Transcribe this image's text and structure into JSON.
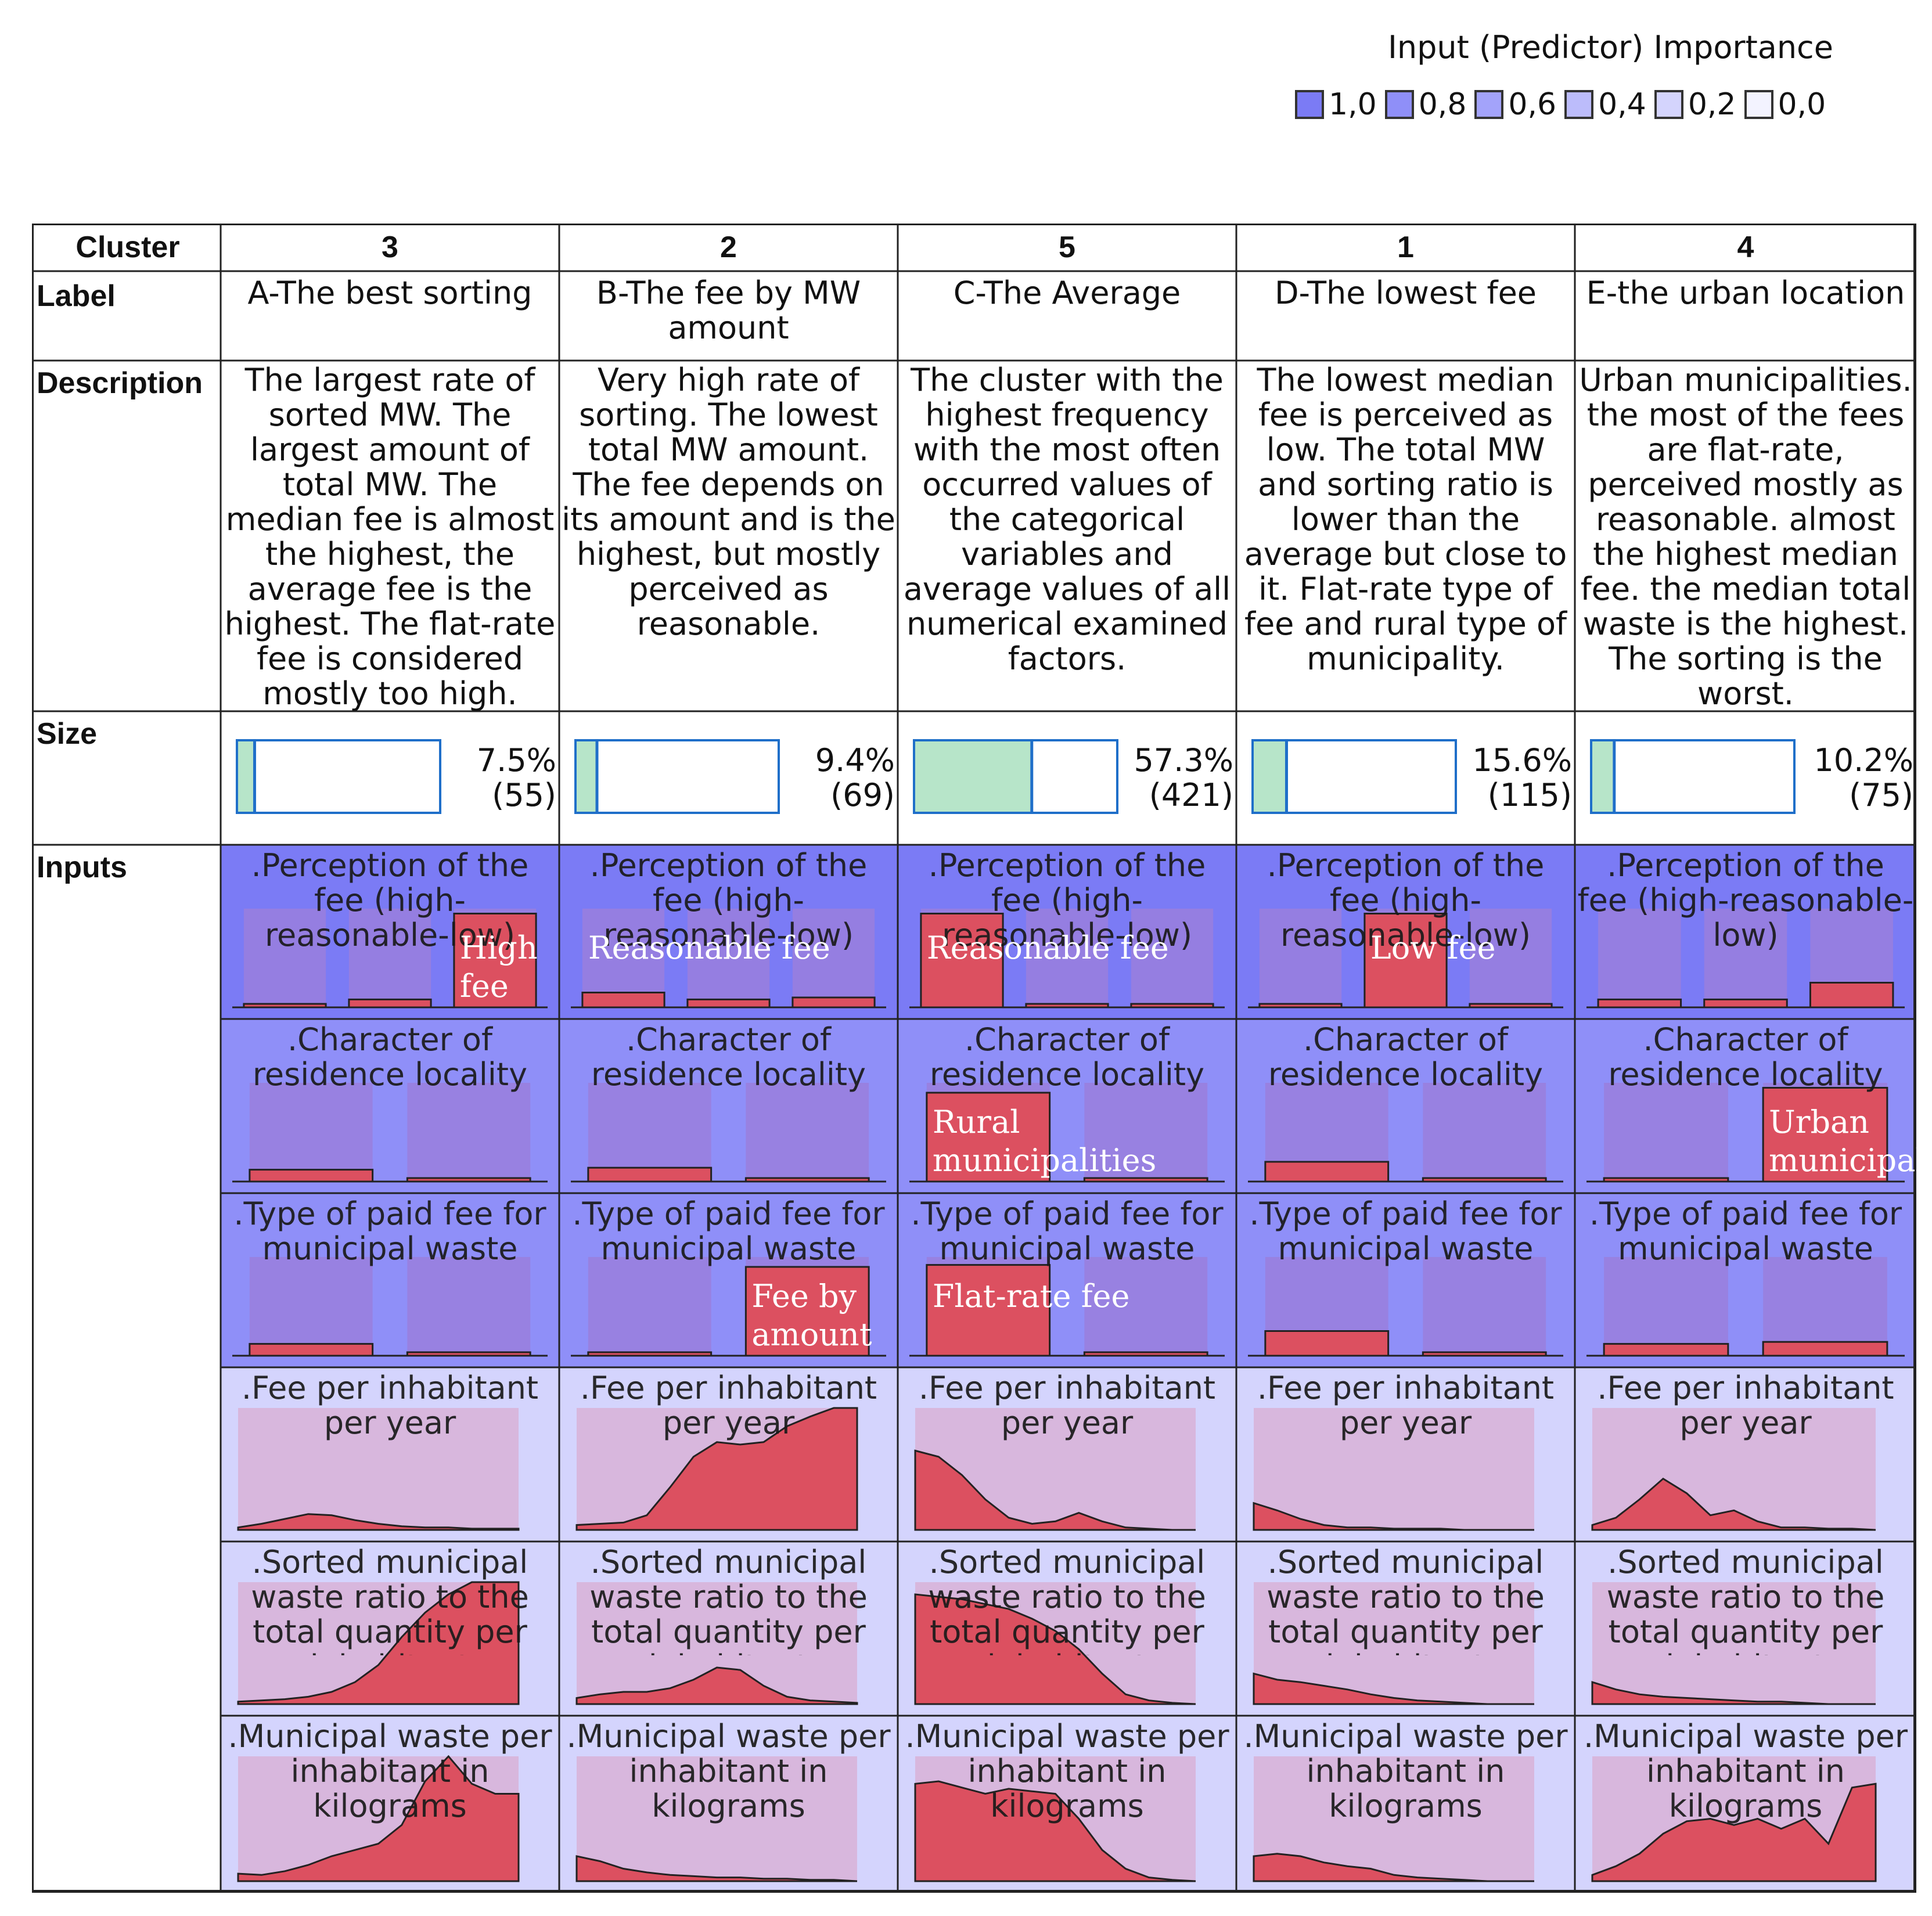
{
  "legend": {
    "title": "Input (Predictor) Importance",
    "items": [
      {
        "label": "1,0",
        "color": "#7b7bf5"
      },
      {
        "label": "0,8",
        "color": "#8f8ff8"
      },
      {
        "label": "0,6",
        "color": "#a3a3fa"
      },
      {
        "label": "0,4",
        "color": "#bcbcfb"
      },
      {
        "label": "0,2",
        "color": "#d4d4fd"
      },
      {
        "label": "0,0",
        "color": "#f3f3ff"
      }
    ]
  },
  "row_headers": {
    "cluster": "Cluster",
    "label": "Label",
    "description": "Description",
    "size": "Size",
    "inputs": "Inputs"
  },
  "clusters": [
    {
      "id": "3",
      "label": "A-The best sorting",
      "description": "The largest rate of sorted MW. The largest amount of total MW. The median fee is almost the highest, the average fee is the highest. The flat-rate fee is considered mostly too high.",
      "size_pct": "7.5%",
      "size_n": "(55)",
      "size_frac": 0.075
    },
    {
      "id": "2",
      "label": "B-The fee by MW amount",
      "description": "Very high rate of sorting. The lowest total MW amount. The fee depends on its amount and is the highest, but mostly perceived as reasonable.",
      "size_pct": "9.4%",
      "size_n": "(69)",
      "size_frac": 0.094
    },
    {
      "id": "5",
      "label": "C-The Average",
      "description": "The cluster with the highest frequency with the most often occurred values of the categorical variables and average values of all numerical examined factors.",
      "size_pct": "57.3%",
      "size_n": "(421)",
      "size_frac": 0.573
    },
    {
      "id": "1",
      "label": "D-The lowest fee",
      "description": "The lowest median fee is perceived as low. The total MW and sorting ratio is lower than the average but close to it. Flat-rate type of fee and rural type of municipality.",
      "size_pct": "15.6%",
      "size_n": "(115)",
      "size_frac": 0.156
    },
    {
      "id": "4",
      "label": "E-the urban location",
      "description": "Urban municipalities. the most of the fees are flat-rate, perceived mostly as reasonable. almost the highest median fee. the median total waste is the highest. The sorting is the worst.",
      "size_pct": "10.2%",
      "size_n": "(75)",
      "size_frac": 0.102
    }
  ],
  "inputs": [
    {
      "name": ".Perception of the fee (high-reasonable-low)",
      "type": "categorical",
      "importance": 1.0,
      "bg": "#7b7bf5",
      "bars": [
        [
          0.02,
          0.08,
          0.95
        ],
        [
          0.15,
          0.08,
          0.1
        ],
        [
          0.95,
          0.02,
          0.02
        ],
        [
          0.02,
          0.95,
          0.02
        ],
        [
          0.08,
          0.08,
          0.25
        ]
      ],
      "annotations": [
        {
          "text": "High fee",
          "bar": 2
        },
        {
          "text": "Reasonable fee",
          "bar": 0
        },
        {
          "text": "Reasonable fee",
          "bar": 0
        },
        {
          "text": "Low fee",
          "bar": 1
        },
        {
          "text": "",
          "bar": -1
        }
      ]
    },
    {
      "name": ".Character of residence locality",
      "type": "categorical",
      "importance": 0.8,
      "bg": "#8f8ff8",
      "bars": [
        [
          0.12,
          0.02
        ],
        [
          0.14,
          0.02
        ],
        [
          0.9,
          0.02
        ],
        [
          0.2,
          0.02
        ],
        [
          0.02,
          0.95
        ]
      ],
      "annotations": [
        {
          "text": "",
          "bar": -1
        },
        {
          "text": "",
          "bar": -1
        },
        {
          "text": "Rural municipalities",
          "bar": 0
        },
        {
          "text": "",
          "bar": -1
        },
        {
          "text": "Urban municipalities",
          "bar": 1
        }
      ]
    },
    {
      "name": ".Type of paid fee for municipal waste",
      "type": "categorical",
      "importance": 0.8,
      "bg": "#8f8ff8",
      "bars": [
        [
          0.12,
          0.02
        ],
        [
          0.02,
          0.9
        ],
        [
          0.92,
          0.02
        ],
        [
          0.25,
          0.02
        ],
        [
          0.12,
          0.14
        ]
      ],
      "annotations": [
        {
          "text": "",
          "bar": -1
        },
        {
          "text": "Fee by amount",
          "bar": 1
        },
        {
          "text": "Flat-rate fee",
          "bar": 0
        },
        {
          "text": "",
          "bar": -1
        },
        {
          "text": "",
          "bar": -1
        }
      ]
    },
    {
      "name": ".Fee per inhabitant per year",
      "type": "continuous",
      "importance": 0.2,
      "bg": "#d4d4fd",
      "curves": [
        [
          0.02,
          0.05,
          0.09,
          0.13,
          0.12,
          0.08,
          0.05,
          0.03,
          0.02,
          0.02,
          0.01,
          0.01,
          0.01
        ],
        [
          0.04,
          0.05,
          0.06,
          0.12,
          0.35,
          0.6,
          0.72,
          0.7,
          0.72,
          0.85,
          0.93,
          1.0,
          1.0
        ],
        [
          0.65,
          0.6,
          0.45,
          0.25,
          0.1,
          0.05,
          0.07,
          0.14,
          0.07,
          0.02,
          0.01,
          0.0,
          0.0
        ],
        [
          0.22,
          0.16,
          0.09,
          0.04,
          0.02,
          0.02,
          0.01,
          0.01,
          0.01,
          0.0,
          0.0,
          0.0,
          0.0
        ],
        [
          0.04,
          0.1,
          0.25,
          0.42,
          0.3,
          0.12,
          0.16,
          0.07,
          0.02,
          0.02,
          0.01,
          0.01,
          0.0
        ]
      ]
    },
    {
      "name": ".Sorted municipal waste ratio to the total quantity per inhabitant",
      "type": "continuous",
      "importance": 0.2,
      "bg": "#d4d4fd",
      "curves": [
        [
          0.02,
          0.03,
          0.04,
          0.06,
          0.1,
          0.18,
          0.32,
          0.55,
          0.75,
          0.9,
          1.0,
          1.0,
          1.0
        ],
        [
          0.05,
          0.08,
          0.1,
          0.1,
          0.13,
          0.2,
          0.3,
          0.28,
          0.15,
          0.06,
          0.03,
          0.02,
          0.01
        ],
        [
          0.9,
          0.88,
          0.86,
          0.82,
          0.78,
          0.7,
          0.6,
          0.45,
          0.25,
          0.08,
          0.03,
          0.01,
          0.0
        ],
        [
          0.25,
          0.2,
          0.18,
          0.15,
          0.12,
          0.08,
          0.05,
          0.03,
          0.02,
          0.01,
          0.0,
          0.0,
          0.0
        ],
        [
          0.18,
          0.12,
          0.08,
          0.06,
          0.05,
          0.04,
          0.03,
          0.02,
          0.02,
          0.01,
          0.0,
          0.0,
          0.0
        ]
      ]
    },
    {
      "name": ".Municipal waste per inhabitant in kilograms",
      "type": "continuous",
      "importance": 0.2,
      "bg": "#d4d4fd",
      "curves": [
        [
          0.06,
          0.05,
          0.08,
          0.13,
          0.2,
          0.25,
          0.3,
          0.45,
          0.8,
          1.0,
          0.78,
          0.7,
          0.7
        ],
        [
          0.2,
          0.16,
          0.1,
          0.07,
          0.05,
          0.04,
          0.03,
          0.03,
          0.02,
          0.02,
          0.01,
          0.01,
          0.0
        ],
        [
          0.78,
          0.8,
          0.75,
          0.7,
          0.74,
          0.72,
          0.7,
          0.5,
          0.25,
          0.1,
          0.03,
          0.01,
          0.0
        ],
        [
          0.2,
          0.22,
          0.2,
          0.15,
          0.12,
          0.1,
          0.05,
          0.03,
          0.02,
          0.01,
          0.0,
          0.0,
          0.0
        ],
        [
          0.05,
          0.12,
          0.22,
          0.38,
          0.48,
          0.5,
          0.45,
          0.5,
          0.42,
          0.5,
          0.3,
          0.75,
          0.78
        ]
      ]
    }
  ],
  "chart_data": {
    "type": "table",
    "title": "",
    "columns": [
      "3",
      "2",
      "5",
      "1",
      "4"
    ],
    "size_percent": [
      7.5,
      9.4,
      57.3,
      15.6,
      10.2
    ],
    "size_count": [
      55,
      69,
      421,
      115,
      75
    ],
    "input_importance": {
      ".Perception of the fee (high-reasonable-low)": 1.0,
      ".Character of residence locality": 0.8,
      ".Type of paid fee for municipal waste": 0.8,
      ".Fee per inhabitant per year": 0.2,
      ".Sorted municipal waste ratio to the total quantity per inhabitant": 0.2,
      ".Municipal waste per inhabitant in kilograms": 0.2
    },
    "grid": true,
    "legend": "top-right"
  }
}
